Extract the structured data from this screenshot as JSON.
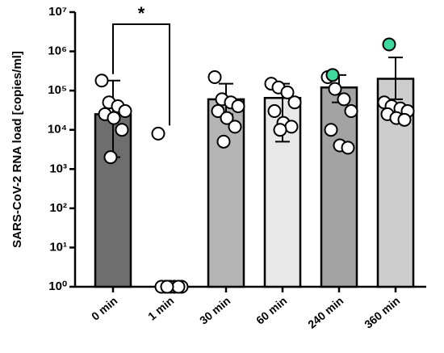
{
  "chart_data": {
    "type": "bar",
    "ylabel": "SARS-CoV-2 RNA load [copies/ml]",
    "categories": [
      "0 min",
      "1 min",
      "30 min",
      "60 min",
      "240 min",
      "360 min"
    ],
    "values": [
      25000,
      1,
      60000,
      65000,
      120000,
      200000
    ],
    "error_high": [
      180000,
      null,
      150000,
      150000,
      250000,
      700000
    ],
    "error_low": [
      2000,
      null,
      25000,
      5000,
      50000,
      60000
    ],
    "bar_colors": [
      "#6e6e6e",
      "#bdbdbd",
      "#b4b4b4",
      "#e8e8e8",
      "#a3a3a3",
      "#cdcdcd"
    ],
    "points": [
      [
        180000,
        50000,
        40000,
        30000,
        25000,
        20000,
        10000,
        2000
      ],
      [
        8000,
        1,
        1,
        1,
        1,
        1,
        1,
        1
      ],
      [
        220000,
        60000,
        50000,
        40000,
        30000,
        20000,
        12000,
        5000
      ],
      [
        150000,
        120000,
        90000,
        50000,
        30000,
        15000,
        12000,
        10000
      ],
      [
        220000,
        110000,
        60000,
        30000,
        10000,
        4000,
        3500
      ],
      [
        50000,
        40000,
        35000,
        30000,
        25000,
        20000,
        18000
      ]
    ],
    "highlight_points": [
      [],
      [],
      [],
      [],
      [
        250000
      ],
      [
        1500000
      ]
    ],
    "point_color": "#ffffff",
    "highlight_color": "#3fd9a0",
    "log_y": true,
    "ylim": [
      1,
      10000000
    ],
    "yticks": [
      {
        "value": 1,
        "label": "10⁰"
      },
      {
        "value": 10,
        "label": "10¹"
      },
      {
        "value": 100,
        "label": "10²"
      },
      {
        "value": 1000,
        "label": "10³"
      },
      {
        "value": 10000,
        "label": "10⁴"
      },
      {
        "value": 100000,
        "label": "10⁵"
      },
      {
        "value": 1000000,
        "label": "10⁶"
      },
      {
        "value": 10000000,
        "label": "10⁷"
      }
    ],
    "significance": [
      {
        "label": "*",
        "groups": [
          0,
          1
        ]
      }
    ]
  }
}
